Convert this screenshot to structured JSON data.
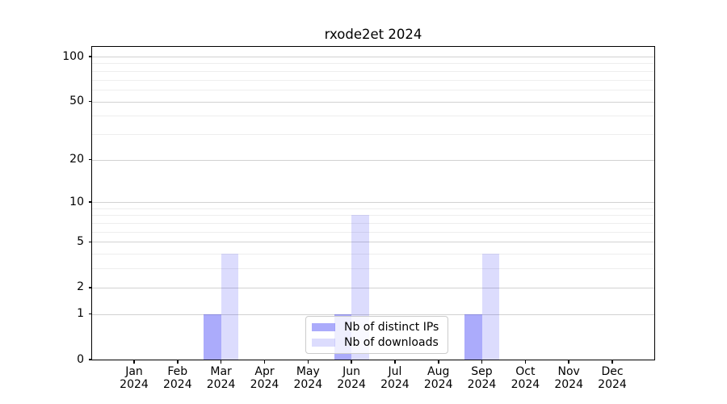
{
  "chart_data": {
    "type": "bar",
    "title": "rxode2et 2024",
    "categories": [
      "Jan 2024",
      "Feb 2024",
      "Mar 2024",
      "Apr 2024",
      "May 2024",
      "Jun 2024",
      "Jul 2024",
      "Aug 2024",
      "Sep 2024",
      "Oct 2024",
      "Nov 2024",
      "Dec 2024"
    ],
    "series": [
      {
        "name": "Nb of distinct IPs",
        "color": "rgba(8,8,242,0.34)",
        "values": [
          0,
          0,
          1,
          0,
          0,
          1,
          0,
          0,
          1,
          0,
          0,
          0
        ]
      },
      {
        "name": "Nb of downloads",
        "color": "rgba(8,8,242,0.14)",
        "values": [
          0,
          0,
          4,
          0,
          0,
          8,
          0,
          0,
          4,
          0,
          0,
          0
        ]
      }
    ],
    "xlabel": "",
    "ylabel": "",
    "yscale": "log1p",
    "ylim": [
      0,
      116
    ],
    "major_yticks": [
      0,
      1,
      2,
      5,
      10,
      20,
      50,
      100
    ],
    "minor_yticks": [
      3,
      4,
      6,
      7,
      8,
      9,
      30,
      40,
      60,
      70,
      80,
      90
    ],
    "grid": "on",
    "legend_position": "lower center",
    "colors": {
      "background": "#ffffff",
      "spine": "#000000",
      "major_grid": "#d2d2d2",
      "minor_grid": "#eeeeee",
      "tick_text": "#000000",
      "legend_border": "#cccccc"
    }
  }
}
